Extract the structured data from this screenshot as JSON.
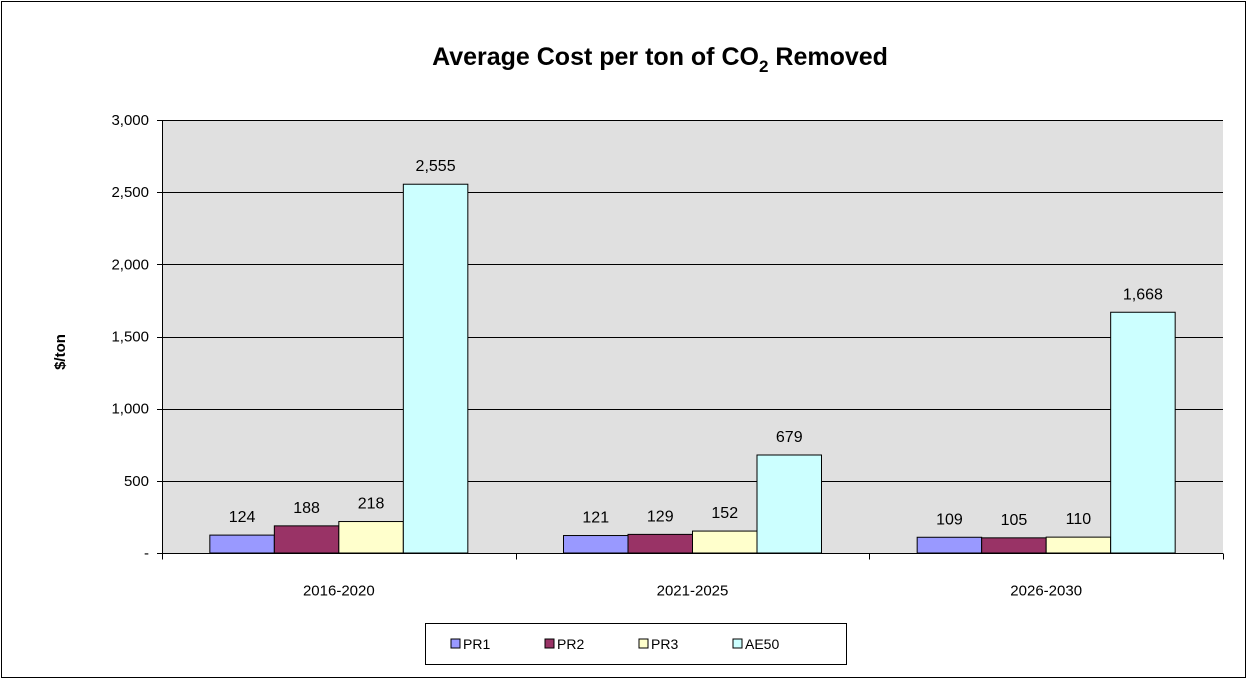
{
  "chart_data": {
    "type": "bar",
    "title": {
      "prefix": "Average Cost per ton of CO",
      "subscript": "2",
      "suffix": " Removed"
    },
    "xlabel": "",
    "ylabel": "$/ton",
    "categories": [
      "2016-2020",
      "2021-2025",
      "2026-2030"
    ],
    "series": [
      {
        "name": "PR1",
        "values": [
          124,
          121,
          109
        ],
        "labels": [
          "124",
          "121",
          "109"
        ],
        "color": "#9999ff"
      },
      {
        "name": "PR2",
        "values": [
          188,
          129,
          105
        ],
        "labels": [
          "188",
          "129",
          "105"
        ],
        "color": "#993366"
      },
      {
        "name": "PR3",
        "values": [
          218,
          152,
          110
        ],
        "labels": [
          "218",
          "152",
          "110"
        ],
        "color": "#ffffcc"
      },
      {
        "name": "AE50",
        "values": [
          2555,
          679,
          1668
        ],
        "labels": [
          "2,555",
          "679",
          "1,668"
        ],
        "color": "#ccffff"
      }
    ],
    "ylim": [
      0,
      3000
    ],
    "yticks": [
      0,
      500,
      1000,
      1500,
      2000,
      2500,
      3000
    ],
    "ytick_labels": [
      "-",
      "500",
      "1,000",
      "1,500",
      "2,000",
      "2,500",
      "3,000"
    ],
    "grid": true,
    "legend_position": "bottom",
    "colors": {
      "plot_background": "#e0e0e0",
      "gridline": "#000000",
      "bar_outline": "#000000",
      "frame": "#000000"
    }
  }
}
